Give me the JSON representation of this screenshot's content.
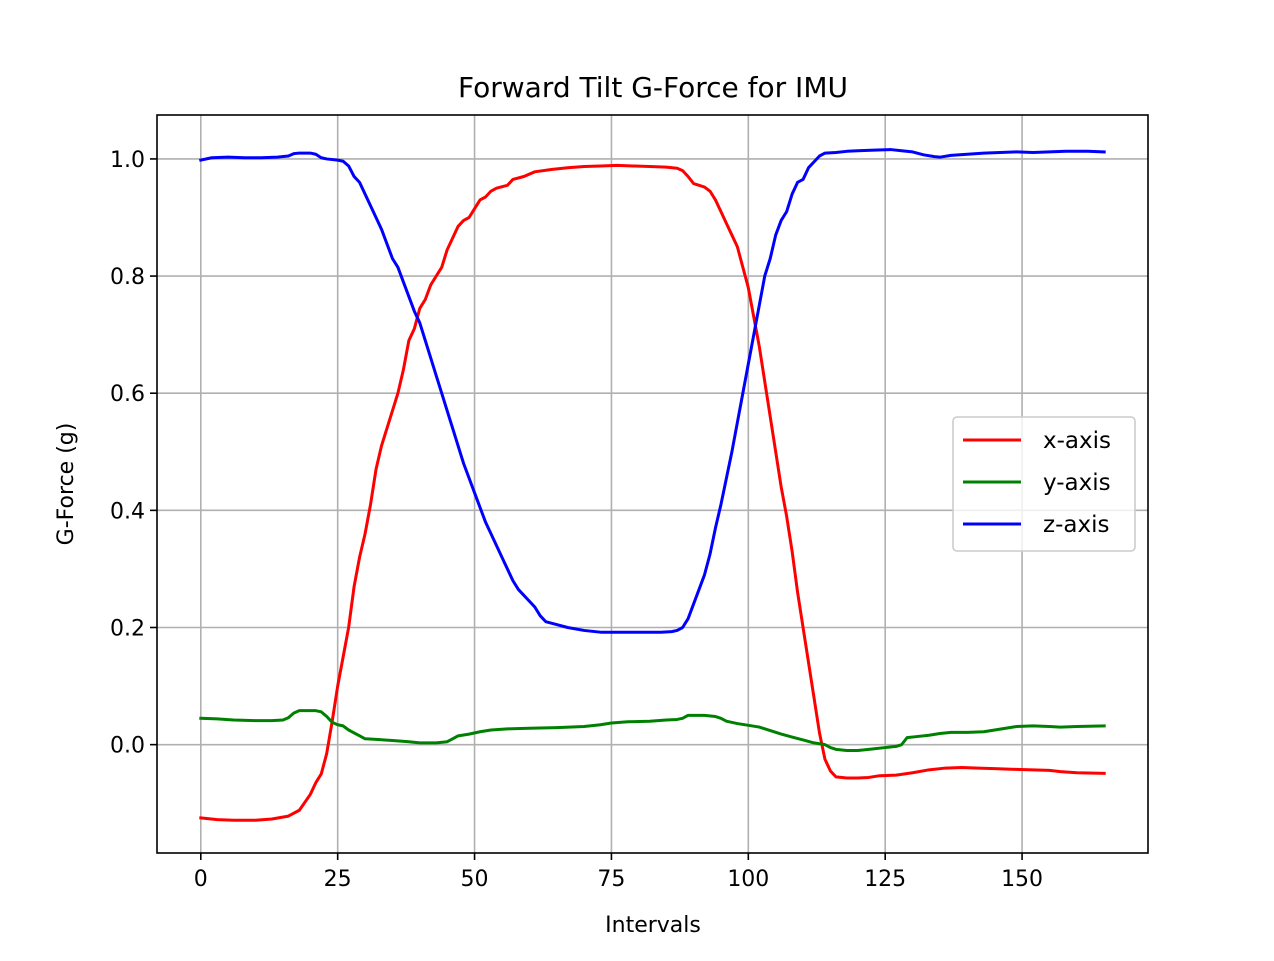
{
  "chart_data": {
    "type": "line",
    "title": "Forward Tilt G-Force for IMU",
    "xlabel": "Intervals",
    "ylabel": "G-Force (g)",
    "xlim": [
      -8,
      173
    ],
    "ylim": [
      -0.185,
      1.075
    ],
    "xticks": [
      0,
      25,
      50,
      75,
      100,
      125,
      150
    ],
    "yticks": [
      0.0,
      0.2,
      0.4,
      0.6,
      0.8,
      1.0
    ],
    "ytick_labels": [
      "0.0",
      "0.2",
      "0.4",
      "0.6",
      "0.8",
      "1.0"
    ],
    "grid": true,
    "legend_position": "center-right",
    "series": [
      {
        "name": "x-axis",
        "color": "#ff0000",
        "points": [
          [
            0,
            -0.125
          ],
          [
            3,
            -0.128
          ],
          [
            6,
            -0.129
          ],
          [
            10,
            -0.129
          ],
          [
            13,
            -0.127
          ],
          [
            16,
            -0.122
          ],
          [
            18,
            -0.112
          ],
          [
            20,
            -0.085
          ],
          [
            21,
            -0.065
          ],
          [
            22,
            -0.05
          ],
          [
            23,
            -0.015
          ],
          [
            24,
            0.04
          ],
          [
            25,
            0.1
          ],
          [
            26,
            0.15
          ],
          [
            27,
            0.2
          ],
          [
            28,
            0.27
          ],
          [
            29,
            0.32
          ],
          [
            30,
            0.36
          ],
          [
            31,
            0.41
          ],
          [
            32,
            0.47
          ],
          [
            33,
            0.51
          ],
          [
            34,
            0.54
          ],
          [
            35,
            0.57
          ],
          [
            36,
            0.6
          ],
          [
            37,
            0.64
          ],
          [
            38,
            0.69
          ],
          [
            39,
            0.71
          ],
          [
            40,
            0.745
          ],
          [
            41,
            0.76
          ],
          [
            42,
            0.785
          ],
          [
            43,
            0.8
          ],
          [
            44,
            0.815
          ],
          [
            45,
            0.845
          ],
          [
            46,
            0.865
          ],
          [
            47,
            0.885
          ],
          [
            48,
            0.895
          ],
          [
            49,
            0.9
          ],
          [
            50,
            0.915
          ],
          [
            51,
            0.93
          ],
          [
            52,
            0.935
          ],
          [
            53,
            0.945
          ],
          [
            54,
            0.95
          ],
          [
            56,
            0.955
          ],
          [
            57,
            0.965
          ],
          [
            59,
            0.97
          ],
          [
            61,
            0.978
          ],
          [
            64,
            0.982
          ],
          [
            67,
            0.985
          ],
          [
            70,
            0.987
          ],
          [
            73,
            0.988
          ],
          [
            76,
            0.989
          ],
          [
            79,
            0.988
          ],
          [
            82,
            0.987
          ],
          [
            85,
            0.986
          ],
          [
            87,
            0.984
          ],
          [
            88,
            0.98
          ],
          [
            89,
            0.97
          ],
          [
            90,
            0.958
          ],
          [
            92,
            0.952
          ],
          [
            93,
            0.945
          ],
          [
            94,
            0.93
          ],
          [
            95,
            0.91
          ],
          [
            96,
            0.89
          ],
          [
            97,
            0.87
          ],
          [
            98,
            0.85
          ],
          [
            99,
            0.815
          ],
          [
            100,
            0.78
          ],
          [
            101,
            0.73
          ],
          [
            102,
            0.68
          ],
          [
            103,
            0.62
          ],
          [
            104,
            0.56
          ],
          [
            105,
            0.5
          ],
          [
            106,
            0.44
          ],
          [
            107,
            0.39
          ],
          [
            108,
            0.33
          ],
          [
            109,
            0.26
          ],
          [
            110,
            0.2
          ],
          [
            111,
            0.14
          ],
          [
            112,
            0.08
          ],
          [
            113,
            0.02
          ],
          [
            114,
            -0.025
          ],
          [
            115,
            -0.045
          ],
          [
            116,
            -0.055
          ],
          [
            118,
            -0.057
          ],
          [
            120,
            -0.057
          ],
          [
            122,
            -0.056
          ],
          [
            124,
            -0.053
          ],
          [
            127,
            -0.052
          ],
          [
            130,
            -0.048
          ],
          [
            133,
            -0.043
          ],
          [
            136,
            -0.04
          ],
          [
            139,
            -0.039
          ],
          [
            142,
            -0.04
          ],
          [
            145,
            -0.041
          ],
          [
            148,
            -0.042
          ],
          [
            152,
            -0.043
          ],
          [
            155,
            -0.044
          ],
          [
            157,
            -0.046
          ],
          [
            160,
            -0.048
          ],
          [
            165,
            -0.049
          ]
        ]
      },
      {
        "name": "y-axis",
        "color": "#008000",
        "points": [
          [
            0,
            0.045
          ],
          [
            3,
            0.044
          ],
          [
            6,
            0.042
          ],
          [
            10,
            0.041
          ],
          [
            13,
            0.041
          ],
          [
            15,
            0.042
          ],
          [
            16,
            0.046
          ],
          [
            17,
            0.054
          ],
          [
            18,
            0.058
          ],
          [
            19,
            0.058
          ],
          [
            21,
            0.058
          ],
          [
            22,
            0.056
          ],
          [
            23,
            0.048
          ],
          [
            24,
            0.038
          ],
          [
            25,
            0.034
          ],
          [
            26,
            0.032
          ],
          [
            27,
            0.025
          ],
          [
            28,
            0.02
          ],
          [
            29,
            0.015
          ],
          [
            30,
            0.01
          ],
          [
            32,
            0.009
          ],
          [
            35,
            0.007
          ],
          [
            38,
            0.005
          ],
          [
            40,
            0.003
          ],
          [
            43,
            0.003
          ],
          [
            45,
            0.005
          ],
          [
            46,
            0.01
          ],
          [
            47,
            0.015
          ],
          [
            49,
            0.018
          ],
          [
            51,
            0.022
          ],
          [
            53,
            0.025
          ],
          [
            56,
            0.027
          ],
          [
            60,
            0.028
          ],
          [
            65,
            0.029
          ],
          [
            70,
            0.031
          ],
          [
            73,
            0.034
          ],
          [
            75,
            0.037
          ],
          [
            78,
            0.039
          ],
          [
            82,
            0.04
          ],
          [
            85,
            0.042
          ],
          [
            87,
            0.043
          ],
          [
            88,
            0.045
          ],
          [
            89,
            0.05
          ],
          [
            92,
            0.05
          ],
          [
            94,
            0.048
          ],
          [
            95,
            0.045
          ],
          [
            96,
            0.04
          ],
          [
            98,
            0.036
          ],
          [
            100,
            0.033
          ],
          [
            102,
            0.03
          ],
          [
            104,
            0.024
          ],
          [
            106,
            0.018
          ],
          [
            108,
            0.013
          ],
          [
            110,
            0.008
          ],
          [
            112,
            0.003
          ],
          [
            114,
            0.0
          ],
          [
            115,
            -0.005
          ],
          [
            116,
            -0.008
          ],
          [
            118,
            -0.01
          ],
          [
            120,
            -0.01
          ],
          [
            122,
            -0.008
          ],
          [
            125,
            -0.005
          ],
          [
            127,
            -0.003
          ],
          [
            128,
            0.0
          ],
          [
            129,
            0.012
          ],
          [
            131,
            0.014
          ],
          [
            133,
            0.016
          ],
          [
            135,
            0.019
          ],
          [
            137,
            0.021
          ],
          [
            140,
            0.021
          ],
          [
            143,
            0.022
          ],
          [
            145,
            0.025
          ],
          [
            147,
            0.028
          ],
          [
            149,
            0.031
          ],
          [
            152,
            0.032
          ],
          [
            155,
            0.031
          ],
          [
            157,
            0.03
          ],
          [
            160,
            0.031
          ],
          [
            165,
            0.032
          ]
        ]
      },
      {
        "name": "z-axis",
        "color": "#0000ff",
        "points": [
          [
            0,
            0.998
          ],
          [
            2,
            1.002
          ],
          [
            5,
            1.003
          ],
          [
            8,
            1.002
          ],
          [
            11,
            1.002
          ],
          [
            14,
            1.003
          ],
          [
            16,
            1.005
          ],
          [
            17,
            1.009
          ],
          [
            18,
            1.01
          ],
          [
            20,
            1.01
          ],
          [
            21,
            1.008
          ],
          [
            22,
            1.002
          ],
          [
            23,
            1.0
          ],
          [
            25,
            0.998
          ],
          [
            26,
            0.996
          ],
          [
            27,
            0.988
          ],
          [
            28,
            0.97
          ],
          [
            29,
            0.96
          ],
          [
            30,
            0.94
          ],
          [
            31,
            0.92
          ],
          [
            32,
            0.9
          ],
          [
            33,
            0.88
          ],
          [
            34,
            0.855
          ],
          [
            35,
            0.83
          ],
          [
            36,
            0.815
          ],
          [
            37,
            0.79
          ],
          [
            38,
            0.765
          ],
          [
            39,
            0.74
          ],
          [
            40,
            0.72
          ],
          [
            41,
            0.69
          ],
          [
            42,
            0.66
          ],
          [
            43,
            0.63
          ],
          [
            44,
            0.6
          ],
          [
            45,
            0.57
          ],
          [
            46,
            0.54
          ],
          [
            47,
            0.51
          ],
          [
            48,
            0.48
          ],
          [
            49,
            0.455
          ],
          [
            50,
            0.43
          ],
          [
            51,
            0.405
          ],
          [
            52,
            0.38
          ],
          [
            53,
            0.36
          ],
          [
            54,
            0.34
          ],
          [
            55,
            0.32
          ],
          [
            56,
            0.3
          ],
          [
            57,
            0.28
          ],
          [
            58,
            0.265
          ],
          [
            59,
            0.255
          ],
          [
            60,
            0.245
          ],
          [
            61,
            0.235
          ],
          [
            62,
            0.22
          ],
          [
            63,
            0.21
          ],
          [
            65,
            0.205
          ],
          [
            67,
            0.2
          ],
          [
            70,
            0.195
          ],
          [
            73,
            0.192
          ],
          [
            76,
            0.192
          ],
          [
            80,
            0.192
          ],
          [
            84,
            0.192
          ],
          [
            86,
            0.193
          ],
          [
            87,
            0.195
          ],
          [
            88,
            0.2
          ],
          [
            89,
            0.215
          ],
          [
            90,
            0.24
          ],
          [
            91,
            0.265
          ],
          [
            92,
            0.29
          ],
          [
            93,
            0.325
          ],
          [
            94,
            0.37
          ],
          [
            95,
            0.41
          ],
          [
            96,
            0.455
          ],
          [
            97,
            0.5
          ],
          [
            98,
            0.55
          ],
          [
            99,
            0.6
          ],
          [
            100,
            0.65
          ],
          [
            101,
            0.7
          ],
          [
            102,
            0.75
          ],
          [
            103,
            0.8
          ],
          [
            104,
            0.83
          ],
          [
            105,
            0.87
          ],
          [
            106,
            0.895
          ],
          [
            107,
            0.91
          ],
          [
            108,
            0.94
          ],
          [
            109,
            0.96
          ],
          [
            110,
            0.965
          ],
          [
            111,
            0.985
          ],
          [
            112,
            0.995
          ],
          [
            113,
            1.005
          ],
          [
            114,
            1.01
          ],
          [
            116,
            1.011
          ],
          [
            118,
            1.013
          ],
          [
            120,
            1.014
          ],
          [
            123,
            1.015
          ],
          [
            126,
            1.016
          ],
          [
            128,
            1.014
          ],
          [
            130,
            1.012
          ],
          [
            132,
            1.007
          ],
          [
            134,
            1.004
          ],
          [
            135,
            1.003
          ],
          [
            137,
            1.006
          ],
          [
            140,
            1.008
          ],
          [
            143,
            1.01
          ],
          [
            146,
            1.011
          ],
          [
            149,
            1.012
          ],
          [
            152,
            1.011
          ],
          [
            155,
            1.012
          ],
          [
            158,
            1.013
          ],
          [
            162,
            1.013
          ],
          [
            165,
            1.012
          ]
        ]
      }
    ]
  }
}
